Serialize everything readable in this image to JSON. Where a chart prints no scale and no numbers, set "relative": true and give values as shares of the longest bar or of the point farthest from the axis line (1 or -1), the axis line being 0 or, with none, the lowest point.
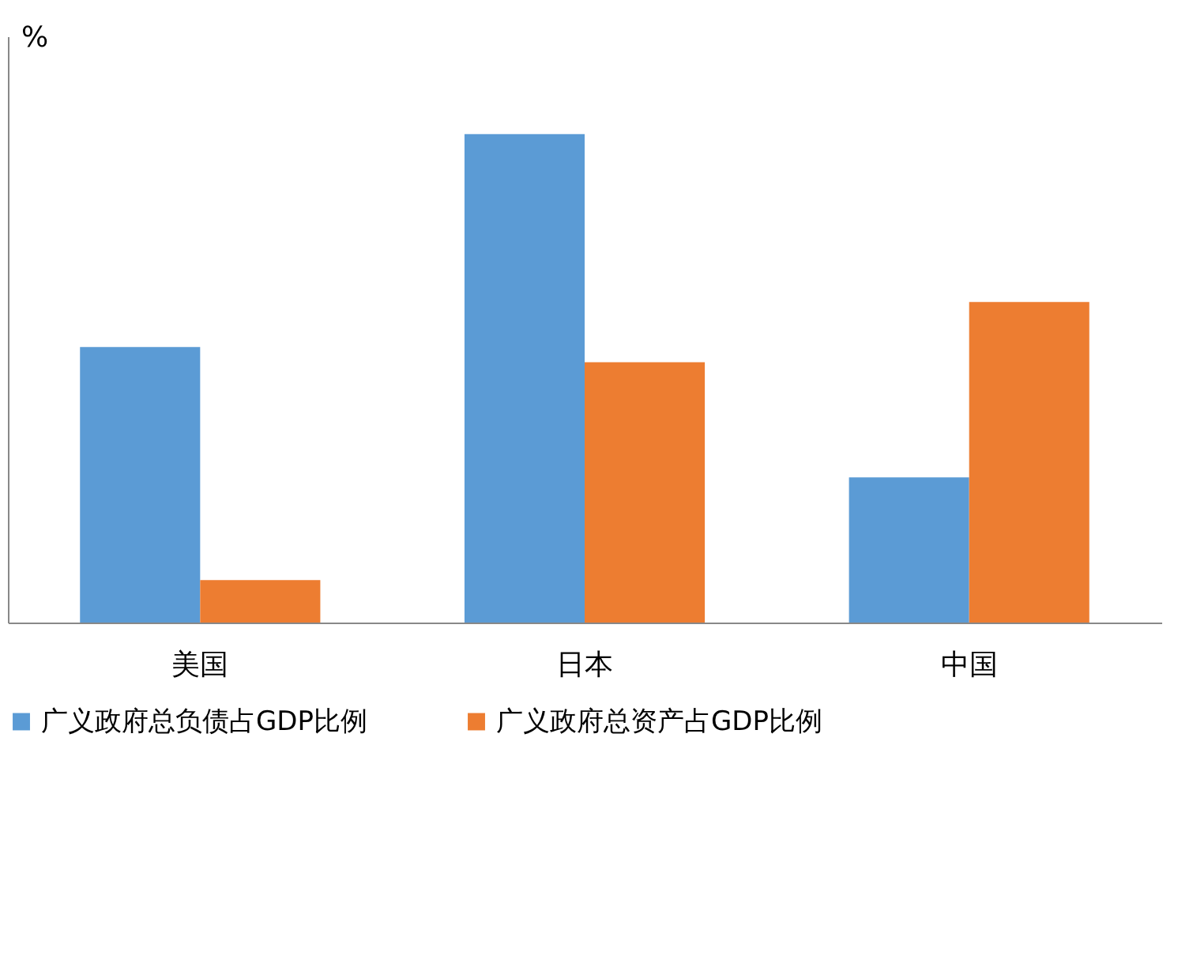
{
  "chart_data": {
    "type": "bar",
    "relative": true,
    "ylabel": "%",
    "categories": [
      "美国",
      "日本",
      "中国"
    ],
    "series": [
      {
        "name": "广义政府总负债占GDP比例",
        "color": "#5b9bd5",
        "values": [
          0.564,
          1,
          0.297
        ]
      },
      {
        "name": "广义政府总资产占GDP比例",
        "color": "#ed7d31",
        "values": [
          0.087,
          0.533,
          0.656
        ]
      }
    ],
    "legend": "bottom",
    "grid": false
  }
}
